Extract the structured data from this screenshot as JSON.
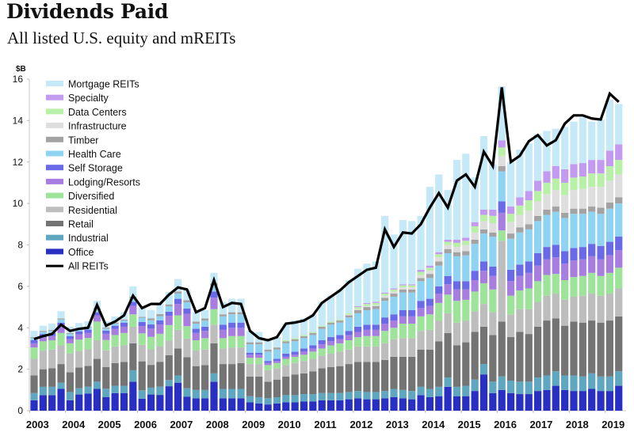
{
  "header": {
    "title": "Dividends Paid",
    "subtitle": "All listed U.S. equity and mREITs"
  },
  "chart_data": {
    "type": "bar",
    "stacked": true,
    "title": "Dividends Paid",
    "subtitle": "All listed U.S. equity and mREITs",
    "ylabel": "$B",
    "xlabel": "",
    "ylim": [
      0,
      16
    ],
    "yticks": [
      0,
      2,
      4,
      6,
      8,
      10,
      12,
      14,
      16
    ],
    "xtick_labels": [
      "2003",
      "2004",
      "2005",
      "2006",
      "2007",
      "2008",
      "2009",
      "2010",
      "2011",
      "2012",
      "2013",
      "2014",
      "2015",
      "2016",
      "2017",
      "2018",
      "2019"
    ],
    "legend_position": "top-left",
    "grid": false,
    "frequency": "quarterly",
    "x": [
      "2003Q1",
      "2003Q2",
      "2003Q3",
      "2003Q4",
      "2004Q1",
      "2004Q2",
      "2004Q3",
      "2004Q4",
      "2005Q1",
      "2005Q2",
      "2005Q3",
      "2005Q4",
      "2006Q1",
      "2006Q2",
      "2006Q3",
      "2006Q4",
      "2007Q1",
      "2007Q2",
      "2007Q3",
      "2007Q4",
      "2008Q1",
      "2008Q2",
      "2008Q3",
      "2008Q4",
      "2009Q1",
      "2009Q2",
      "2009Q3",
      "2009Q4",
      "2010Q1",
      "2010Q2",
      "2010Q3",
      "2010Q4",
      "2011Q1",
      "2011Q2",
      "2011Q3",
      "2011Q4",
      "2012Q1",
      "2012Q2",
      "2012Q3",
      "2012Q4",
      "2013Q1",
      "2013Q2",
      "2013Q3",
      "2013Q4",
      "2014Q1",
      "2014Q2",
      "2014Q3",
      "2014Q4",
      "2015Q1",
      "2015Q2",
      "2015Q3",
      "2015Q4",
      "2016Q1",
      "2016Q2",
      "2016Q3",
      "2016Q4",
      "2017Q1",
      "2017Q2",
      "2017Q3",
      "2017Q4",
      "2018Q1",
      "2018Q2",
      "2018Q3",
      "2018Q4",
      "2019Q1",
      "2019Q2"
    ],
    "series": [
      {
        "name": "Office",
        "color": "#2a2fc4",
        "values": [
          0.5,
          0.75,
          0.75,
          1.05,
          0.5,
          0.78,
          0.83,
          1.05,
          0.66,
          0.85,
          0.85,
          1.4,
          0.58,
          0.78,
          0.76,
          1.18,
          1.35,
          0.68,
          0.6,
          0.6,
          1.4,
          0.6,
          0.6,
          0.6,
          0.4,
          0.35,
          0.3,
          0.35,
          0.4,
          0.4,
          0.45,
          0.45,
          0.5,
          0.5,
          0.5,
          0.55,
          0.6,
          0.55,
          0.55,
          0.6,
          0.65,
          0.6,
          0.55,
          0.75,
          0.65,
          0.7,
          1.15,
          0.7,
          0.7,
          0.95,
          1.75,
          0.85,
          1.0,
          0.85,
          0.8,
          0.8,
          0.95,
          1.0,
          1.2,
          1.0,
          0.95,
          0.95,
          1.05,
          0.95,
          0.95,
          1.2
        ]
      },
      {
        "name": "Industrial",
        "color": "#5fa6c0",
        "values": [
          0.35,
          0.4,
          0.4,
          0.3,
          0.4,
          0.3,
          0.33,
          0.35,
          0.4,
          0.35,
          0.35,
          0.55,
          0.4,
          0.33,
          0.4,
          0.3,
          0.35,
          0.4,
          0.4,
          0.4,
          0.4,
          0.45,
          0.45,
          0.45,
          0.3,
          0.3,
          0.3,
          0.3,
          0.35,
          0.35,
          0.35,
          0.35,
          0.35,
          0.35,
          0.35,
          0.35,
          0.35,
          0.35,
          0.35,
          0.35,
          0.4,
          0.4,
          0.4,
          0.4,
          0.4,
          0.45,
          0.45,
          0.45,
          0.5,
          0.55,
          0.5,
          0.55,
          0.65,
          0.6,
          0.6,
          0.6,
          0.65,
          0.7,
          0.7,
          0.7,
          0.75,
          0.7,
          0.75,
          0.7,
          0.7,
          0.7
        ]
      },
      {
        "name": "Retail",
        "color": "#747474",
        "values": [
          0.85,
          0.85,
          0.9,
          0.9,
          0.95,
          1.0,
          1.0,
          1.1,
          1.05,
          1.1,
          1.15,
          1.3,
          1.4,
          1.1,
          1.2,
          1.2,
          1.3,
          1.5,
          1.15,
          1.2,
          1.45,
          1.2,
          1.2,
          1.25,
          0.95,
          1.0,
          0.8,
          0.85,
          0.9,
          1.0,
          1.0,
          1.1,
          1.2,
          1.25,
          1.3,
          1.35,
          1.4,
          1.45,
          1.45,
          1.5,
          1.55,
          1.6,
          1.65,
          1.8,
          1.9,
          2.2,
          2.15,
          2.0,
          2.1,
          2.3,
          1.8,
          2.25,
          2.65,
          2.1,
          2.4,
          2.3,
          2.45,
          2.65,
          2.55,
          2.4,
          2.6,
          2.6,
          2.55,
          2.6,
          2.7,
          2.65
        ]
      },
      {
        "name": "Residential",
        "color": "#bdbdbd",
        "values": [
          0.8,
          0.9,
          0.9,
          0.9,
          0.9,
          0.8,
          0.8,
          0.9,
          0.8,
          0.8,
          0.8,
          0.8,
          0.8,
          0.75,
          0.75,
          0.7,
          0.9,
          0.9,
          0.75,
          0.75,
          0.9,
          0.75,
          0.8,
          0.75,
          0.6,
          0.6,
          0.55,
          0.55,
          0.55,
          0.55,
          0.6,
          0.6,
          0.6,
          0.65,
          0.7,
          0.7,
          0.75,
          0.75,
          0.75,
          0.8,
          0.85,
          0.9,
          0.9,
          0.9,
          0.95,
          1.0,
          0.95,
          1.1,
          1.05,
          1.0,
          1.1,
          1.1,
          3.9,
          1.1,
          1.1,
          1.2,
          1.2,
          1.2,
          1.2,
          1.25,
          1.2,
          1.3,
          1.3,
          1.3,
          1.3,
          1.35
        ]
      },
      {
        "name": "Diversified",
        "color": "#9ee39a",
        "values": [
          0.55,
          0.45,
          0.45,
          0.6,
          0.5,
          0.55,
          0.55,
          0.9,
          0.5,
          0.55,
          0.6,
          0.6,
          0.55,
          0.6,
          0.6,
          0.75,
          0.7,
          0.6,
          0.5,
          0.55,
          0.75,
          0.5,
          0.55,
          0.55,
          0.3,
          0.3,
          0.25,
          0.25,
          0.3,
          0.3,
          0.3,
          0.35,
          0.35,
          0.4,
          0.4,
          0.45,
          0.45,
          0.5,
          0.5,
          0.6,
          0.55,
          0.7,
          0.7,
          0.7,
          0.75,
          0.85,
          0.9,
          1.05,
          1.0,
          0.95,
          1.0,
          1.1,
          0.5,
          0.9,
          0.9,
          1.0,
          1.0,
          1.0,
          0.95,
          0.95,
          0.95,
          0.95,
          1.0,
          0.95,
          1.0,
          1.0
        ]
      },
      {
        "name": "Lodging/Resorts",
        "color": "#a77de0",
        "values": [
          0.2,
          0.2,
          0.2,
          0.3,
          0.2,
          0.25,
          0.25,
          0.3,
          0.3,
          0.3,
          0.3,
          0.4,
          0.35,
          0.4,
          0.45,
          0.45,
          0.55,
          0.6,
          0.35,
          0.35,
          0.55,
          0.4,
          0.4,
          0.4,
          0.15,
          0.15,
          0.1,
          0.1,
          0.1,
          0.1,
          0.15,
          0.15,
          0.2,
          0.2,
          0.2,
          0.25,
          0.25,
          0.3,
          0.3,
          0.35,
          0.35,
          0.35,
          0.35,
          0.4,
          0.4,
          0.45,
          0.5,
          0.55,
          0.5,
          0.55,
          0.6,
          0.65,
          0.85,
          0.7,
          0.7,
          0.75,
          0.75,
          0.75,
          0.8,
          0.8,
          0.8,
          0.8,
          0.8,
          0.8,
          0.85,
          0.85
        ]
      },
      {
        "name": "Self Storage",
        "color": "#6a6ae8",
        "values": [
          0.15,
          0.15,
          0.15,
          0.2,
          0.15,
          0.15,
          0.15,
          0.15,
          0.15,
          0.15,
          0.2,
          0.2,
          0.2,
          0.2,
          0.2,
          0.2,
          0.25,
          0.25,
          0.2,
          0.2,
          0.3,
          0.25,
          0.25,
          0.25,
          0.1,
          0.1,
          0.1,
          0.1,
          0.15,
          0.15,
          0.15,
          0.15,
          0.2,
          0.2,
          0.2,
          0.2,
          0.25,
          0.25,
          0.25,
          0.3,
          0.3,
          0.3,
          0.3,
          0.35,
          0.35,
          0.35,
          0.4,
          0.4,
          0.4,
          0.45,
          0.45,
          0.45,
          0.55,
          0.55,
          0.55,
          0.55,
          0.6,
          0.6,
          0.6,
          0.6,
          0.6,
          0.6,
          0.6,
          0.65,
          0.65,
          0.65
        ]
      },
      {
        "name": "Health Care",
        "color": "#8fd3f2",
        "values": [
          0.1,
          0.1,
          0.1,
          0.15,
          0.1,
          0.1,
          0.1,
          0.15,
          0.1,
          0.1,
          0.1,
          0.2,
          0.2,
          0.2,
          0.2,
          0.25,
          0.25,
          0.3,
          0.25,
          0.3,
          0.3,
          0.4,
          0.4,
          0.4,
          0.4,
          0.4,
          0.45,
          0.45,
          0.5,
          0.5,
          0.5,
          0.5,
          0.55,
          0.6,
          0.6,
          0.65,
          0.65,
          0.7,
          0.75,
          0.8,
          0.85,
          0.85,
          0.85,
          0.95,
          1.0,
          1.0,
          1.1,
          1.2,
          1.25,
          1.3,
          1.35,
          1.45,
          1.45,
          1.5,
          1.55,
          1.55,
          1.55,
          1.55,
          1.6,
          1.6,
          1.65,
          1.6,
          1.55,
          1.55,
          1.6,
          1.6
        ]
      },
      {
        "name": "Timber",
        "color": "#a3a3a3",
        "values": [
          0.05,
          0.05,
          0.05,
          0.05,
          0.05,
          0.05,
          0.05,
          0.05,
          0.05,
          0.05,
          0.05,
          0.05,
          0.05,
          0.1,
          0.1,
          0.1,
          0.1,
          0.1,
          0.1,
          0.1,
          0.1,
          0.1,
          0.1,
          0.1,
          0.1,
          0.1,
          0.1,
          0.1,
          0.1,
          0.1,
          0.1,
          0.1,
          0.1,
          0.1,
          0.1,
          0.1,
          0.15,
          0.15,
          0.15,
          0.15,
          0.15,
          0.15,
          0.15,
          0.15,
          0.2,
          0.2,
          0.2,
          0.2,
          0.2,
          0.2,
          0.2,
          0.2,
          0.25,
          0.25,
          0.25,
          0.25,
          0.25,
          0.25,
          0.25,
          0.25,
          0.25,
          0.25,
          0.25,
          0.3,
          0.3,
          0.3
        ]
      },
      {
        "name": "Infrastructure",
        "color": "#dedede",
        "values": [
          0.0,
          0.0,
          0.0,
          0.0,
          0.0,
          0.0,
          0.0,
          0.0,
          0.0,
          0.0,
          0.0,
          0.0,
          0.0,
          0.0,
          0.0,
          0.0,
          0.0,
          0.0,
          0.0,
          0.0,
          0.0,
          0.0,
          0.0,
          0.0,
          0.0,
          0.0,
          0.0,
          0.0,
          0.0,
          0.0,
          0.0,
          0.0,
          0.0,
          0.0,
          0.0,
          0.05,
          0.05,
          0.05,
          0.05,
          0.1,
          0.1,
          0.1,
          0.1,
          0.15,
          0.15,
          0.2,
          0.2,
          0.25,
          0.3,
          0.35,
          0.4,
          0.45,
          0.5,
          0.55,
          0.6,
          0.65,
          0.7,
          0.75,
          0.8,
          0.85,
          0.9,
          0.95,
          0.95,
          1.0,
          1.05,
          1.1
        ]
      },
      {
        "name": "Data Centers",
        "color": "#b8f0a8",
        "values": [
          0.0,
          0.0,
          0.0,
          0.0,
          0.0,
          0.0,
          0.0,
          0.0,
          0.0,
          0.0,
          0.0,
          0.0,
          0.0,
          0.0,
          0.0,
          0.0,
          0.0,
          0.0,
          0.0,
          0.0,
          0.0,
          0.0,
          0.0,
          0.0,
          0.0,
          0.0,
          0.0,
          0.0,
          0.05,
          0.05,
          0.05,
          0.05,
          0.05,
          0.05,
          0.05,
          0.05,
          0.1,
          0.1,
          0.1,
          0.1,
          0.1,
          0.1,
          0.1,
          0.15,
          0.15,
          0.15,
          0.15,
          0.2,
          0.2,
          0.3,
          0.3,
          0.35,
          0.4,
          0.4,
          0.45,
          0.5,
          0.5,
          0.55,
          0.55,
          0.6,
          0.6,
          0.6,
          0.65,
          0.65,
          0.7,
          0.7
        ]
      },
      {
        "name": "Specialty",
        "color": "#c29af0",
        "values": [
          0.0,
          0.0,
          0.0,
          0.0,
          0.0,
          0.0,
          0.0,
          0.0,
          0.0,
          0.0,
          0.0,
          0.0,
          0.0,
          0.0,
          0.0,
          0.0,
          0.0,
          0.0,
          0.0,
          0.0,
          0.0,
          0.0,
          0.0,
          0.0,
          0.0,
          0.0,
          0.0,
          0.0,
          0.0,
          0.0,
          0.0,
          0.0,
          0.0,
          0.0,
          0.0,
          0.0,
          0.05,
          0.05,
          0.05,
          0.05,
          0.05,
          0.05,
          0.05,
          0.1,
          0.1,
          0.1,
          0.1,
          0.15,
          0.15,
          0.2,
          0.25,
          0.3,
          0.35,
          0.35,
          0.4,
          0.45,
          0.5,
          0.55,
          0.6,
          0.65,
          0.65,
          0.65,
          0.65,
          0.65,
          0.75,
          0.75
        ]
      },
      {
        "name": "Mortgage REITs",
        "color": "#c5e9f7",
        "values": [
          0.3,
          0.25,
          0.3,
          0.35,
          0.3,
          0.25,
          0.25,
          0.35,
          0.3,
          0.3,
          0.35,
          0.5,
          0.45,
          0.4,
          0.5,
          0.6,
          0.6,
          0.5,
          0.45,
          0.4,
          0.5,
          0.6,
          0.65,
          0.65,
          0.55,
          0.5,
          0.5,
          0.5,
          0.8,
          0.85,
          0.8,
          0.85,
          1.15,
          1.25,
          1.45,
          1.6,
          1.8,
          1.9,
          1.95,
          3.7,
          2.6,
          3.1,
          3.05,
          2.6,
          3.8,
          3.75,
          2.4,
          3.85,
          4.05,
          2.15,
          3.55,
          2.2,
          2.6,
          2.15,
          2.3,
          2.3,
          2.25,
          1.95,
          1.8,
          2.05,
          2.05,
          2.2,
          1.85,
          1.95,
          2.45,
          1.95
        ]
      },
      {
        "name": "All REITs",
        "type": "line",
        "color": "#000000",
        "values": [
          3.45,
          3.6,
          3.7,
          4.15,
          3.85,
          3.95,
          4.0,
          5.1,
          4.1,
          4.3,
          4.6,
          5.55,
          4.95,
          5.15,
          5.15,
          5.6,
          5.95,
          5.85,
          4.75,
          4.95,
          6.3,
          5.0,
          5.2,
          5.15,
          3.85,
          3.5,
          3.4,
          3.55,
          4.2,
          4.25,
          4.35,
          4.6,
          5.2,
          5.5,
          5.8,
          6.2,
          6.5,
          6.8,
          6.9,
          8.75,
          7.9,
          8.6,
          8.55,
          9.0,
          9.8,
          10.5,
          9.8,
          11.1,
          11.4,
          10.8,
          12.5,
          11.8,
          15.6,
          12.0,
          12.3,
          13.0,
          13.3,
          12.8,
          13.05,
          13.85,
          14.25,
          14.25,
          14.1,
          14.05,
          15.3,
          14.9
        ]
      }
    ]
  }
}
